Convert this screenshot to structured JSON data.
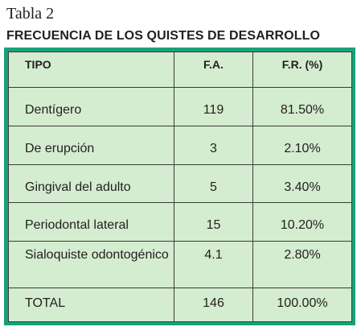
{
  "caption": "Tabla 2",
  "title": "FRECUENCIA DE LOS QUISTES DE DESARROLLO",
  "colors": {
    "frame": "#19a179",
    "cell_background": "#d4eccf",
    "grid_line": "#3b3b3b",
    "text": "#231f20"
  },
  "table": {
    "headers": [
      "TIPO",
      "F.A.",
      "F.R. (%)"
    ],
    "rows": [
      {
        "tipo": "Dentígero",
        "fa": "119",
        "fr": "81.50%"
      },
      {
        "tipo": "De erupción",
        "fa": "3",
        "fr": "2.10%"
      },
      {
        "tipo": "Gingival del adulto",
        "fa": "5",
        "fr": "3.40%"
      },
      {
        "tipo": "Periodontal lateral",
        "fa": "15",
        "fr": "10.20%"
      },
      {
        "tipo": "Sialoquiste odontogénico",
        "fa": "4.1",
        "fr": "2.80%"
      },
      {
        "tipo": "TOTAL",
        "fa": "146",
        "fr": "100.00%"
      }
    ]
  }
}
